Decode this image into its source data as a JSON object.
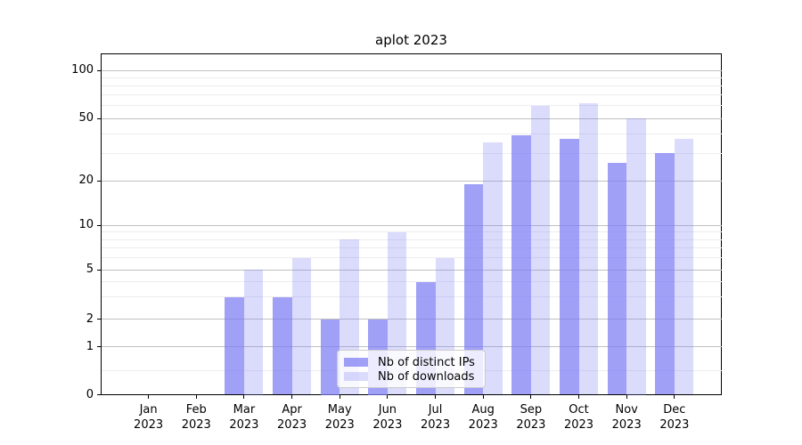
{
  "title": "aplot 2023",
  "chart_data": {
    "type": "bar",
    "title": "aplot 2023",
    "year": "2023",
    "categories": [
      "Jan",
      "Feb",
      "Mar",
      "Apr",
      "May",
      "Jun",
      "Jul",
      "Aug",
      "Sep",
      "Oct",
      "Nov",
      "Dec"
    ],
    "series": [
      {
        "name": "Nb of distinct IPs",
        "alpha": 0.72,
        "values": [
          0,
          0,
          3,
          3,
          2,
          2,
          4,
          19,
          39,
          37,
          26,
          30
        ]
      },
      {
        "name": "Nb of downloads",
        "alpha": 0.28,
        "values": [
          0,
          0,
          5,
          6,
          8,
          9,
          6,
          35,
          60,
          62,
          50,
          37
        ]
      }
    ],
    "yscale": "symlog",
    "y_major_ticks": [
      0,
      1,
      2,
      5,
      10,
      20,
      50,
      100
    ],
    "y_minor_ticks": [
      0.5,
      3,
      4,
      6,
      7,
      8,
      9,
      30,
      40,
      60,
      70,
      80,
      90
    ],
    "ylim": [
      0,
      130
    ],
    "grid": true,
    "legend_position": "lower center",
    "colors": {
      "bar_base": "#7c7cf4",
      "bar_dark": "#a1a1f0",
      "bar_light": "#dcdcf8",
      "grid_major": "#c0c0c0",
      "grid_minor": "#ececf1",
      "spine": "#000000",
      "legend_border": "#cccccc"
    }
  }
}
